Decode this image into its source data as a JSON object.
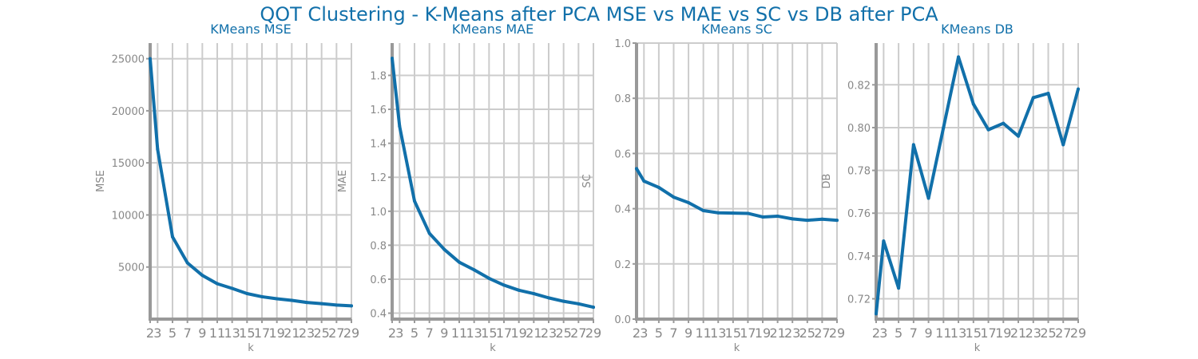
{
  "figure": {
    "title": "QOT Clustering - K-Means after PCA MSE vs MAE vs SC vs DB after PCA",
    "colors": {
      "line": "#1170aa",
      "title": "#1170aa",
      "axis": "#999999",
      "grid": "#cccccc",
      "tick_text": "#888888"
    }
  },
  "chart_data": [
    {
      "type": "line",
      "title": "KMeans MSE",
      "xlabel": "k",
      "ylabel": "MSE",
      "x": [
        2,
        3,
        5,
        7,
        9,
        11,
        13,
        15,
        17,
        19,
        21,
        23,
        25,
        27,
        29
      ],
      "xticks": [
        2,
        3,
        5,
        7,
        9,
        11,
        13,
        15,
        17,
        19,
        21,
        23,
        25,
        27,
        29
      ],
      "values": [
        25000,
        16300,
        7900,
        5400,
        4200,
        3400,
        2950,
        2450,
        2150,
        1950,
        1800,
        1600,
        1480,
        1350,
        1270
      ],
      "ylim": [
        0,
        26500
      ],
      "yticks": [
        5000,
        10000,
        15000,
        20000,
        25000
      ],
      "grid": true
    },
    {
      "type": "line",
      "title": "KMeans MAE",
      "xlabel": "k",
      "ylabel": "MAE",
      "x": [
        2,
        3,
        5,
        7,
        9,
        11,
        13,
        15,
        17,
        19,
        21,
        23,
        25,
        27,
        29
      ],
      "xticks": [
        2,
        3,
        5,
        7,
        9,
        11,
        13,
        15,
        17,
        19,
        21,
        23,
        25,
        27,
        29
      ],
      "values": [
        1.9,
        1.5,
        1.06,
        0.87,
        0.775,
        0.7,
        0.655,
        0.605,
        0.565,
        0.535,
        0.515,
        0.49,
        0.47,
        0.455,
        0.435
      ],
      "ylim": [
        0.365,
        1.99
      ],
      "yticks": [
        0.4,
        0.6,
        0.8,
        1.0,
        1.2,
        1.4,
        1.6,
        1.8
      ],
      "yticklabels": [
        "0.4",
        "0.6",
        "0.8",
        "1.0",
        "1.2",
        "1.4",
        "1.6",
        "1.8"
      ],
      "grid": true
    },
    {
      "type": "line",
      "title": "KMeans SC",
      "xlabel": "k",
      "ylabel": "SC",
      "x": [
        2,
        3,
        5,
        7,
        9,
        11,
        13,
        15,
        17,
        19,
        21,
        23,
        25,
        27,
        29
      ],
      "xticks": [
        2,
        3,
        5,
        7,
        9,
        11,
        13,
        15,
        17,
        19,
        21,
        23,
        25,
        27,
        29
      ],
      "values": [
        0.545,
        0.5,
        0.477,
        0.442,
        0.422,
        0.393,
        0.385,
        0.384,
        0.383,
        0.37,
        0.373,
        0.363,
        0.358,
        0.362,
        0.358
      ],
      "ylim": [
        0,
        1.0
      ],
      "yticks": [
        0.0,
        0.2,
        0.4,
        0.6,
        0.8,
        1.0
      ],
      "yticklabels": [
        "0.0",
        "0.2",
        "0.4",
        "0.6",
        "0.8",
        "1.0"
      ],
      "grid": true
    },
    {
      "type": "line",
      "title": "KMeans DB",
      "xlabel": "k",
      "ylabel": "DB",
      "x": [
        2,
        3,
        5,
        7,
        9,
        11,
        13,
        15,
        17,
        19,
        21,
        23,
        25,
        27,
        29
      ],
      "xticks": [
        2,
        3,
        5,
        7,
        9,
        11,
        13,
        15,
        17,
        19,
        21,
        23,
        25,
        27,
        29
      ],
      "values": [
        0.713,
        0.747,
        0.725,
        0.792,
        0.767,
        0.8,
        0.833,
        0.811,
        0.799,
        0.802,
        0.796,
        0.814,
        0.816,
        0.792,
        0.818
      ],
      "ylim": [
        0.7105,
        0.8395
      ],
      "yticks": [
        0.72,
        0.74,
        0.76,
        0.78,
        0.8,
        0.82
      ],
      "yticklabels": [
        "0.72",
        "0.74",
        "0.76",
        "0.78",
        "0.80",
        "0.82"
      ],
      "grid": true
    }
  ]
}
